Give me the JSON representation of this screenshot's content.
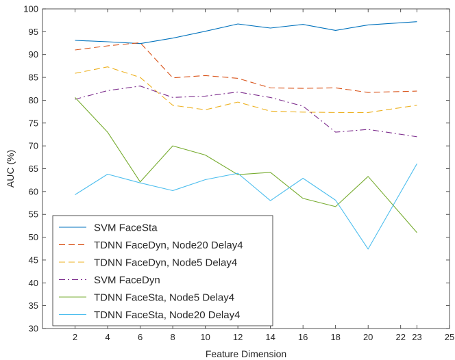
{
  "chart_data": {
    "type": "line",
    "xlabel": "Feature Dimension",
    "ylabel": "AUC (%)",
    "xlim": [
      0,
      25
    ],
    "ylim": [
      30,
      100
    ],
    "xticks": [
      2,
      4,
      6,
      8,
      10,
      12,
      14,
      16,
      18,
      20,
      22,
      23,
      25
    ],
    "yticks": [
      30,
      35,
      40,
      45,
      50,
      55,
      60,
      65,
      70,
      75,
      80,
      85,
      90,
      95,
      100
    ],
    "grid": false,
    "legend_position": "lower-left",
    "x": [
      2,
      4,
      6,
      8,
      10,
      12,
      14,
      16,
      18,
      20,
      23
    ],
    "series": [
      {
        "name": "SVM FaceSta",
        "color": "#0072BD",
        "dash": "solid",
        "values": [
          93.1,
          92.8,
          92.4,
          93.6,
          95.1,
          96.7,
          95.8,
          96.6,
          95.3,
          96.5,
          97.2
        ]
      },
      {
        "name": "TDNN FaceDyn, Node20 Delay4",
        "color": "#D95319",
        "dash": "dashed",
        "values": [
          91.0,
          91.9,
          92.6,
          84.9,
          85.4,
          84.8,
          82.7,
          82.6,
          82.7,
          81.7,
          82.0
        ]
      },
      {
        "name": "TDNN FaceDyn, Node5 Delay4",
        "color": "#EDB120",
        "dash": "dashed",
        "values": [
          85.9,
          87.3,
          85.0,
          78.9,
          77.9,
          79.6,
          77.6,
          77.4,
          77.3,
          77.3,
          78.9
        ]
      },
      {
        "name": "SVM FaceDyn",
        "color": "#7E2F8E",
        "dash": "dashdot",
        "values": [
          80.2,
          82.1,
          83.1,
          80.6,
          80.9,
          81.8,
          80.6,
          78.7,
          73.0,
          73.6,
          72.0
        ]
      },
      {
        "name": "TDNN FaceSta, Node5 Delay4",
        "color": "#77AC30",
        "dash": "solid",
        "values": [
          80.6,
          73.0,
          62.1,
          70.0,
          68.0,
          63.7,
          64.2,
          58.5,
          56.7,
          63.3,
          51.0
        ]
      },
      {
        "name": "TDNN FaceSta, Node20 Delay4",
        "color": "#4DBEEE",
        "dash": "solid",
        "values": [
          59.3,
          63.8,
          61.9,
          60.2,
          62.6,
          64.0,
          58.0,
          62.9,
          58.1,
          47.4,
          66.1
        ]
      }
    ]
  }
}
